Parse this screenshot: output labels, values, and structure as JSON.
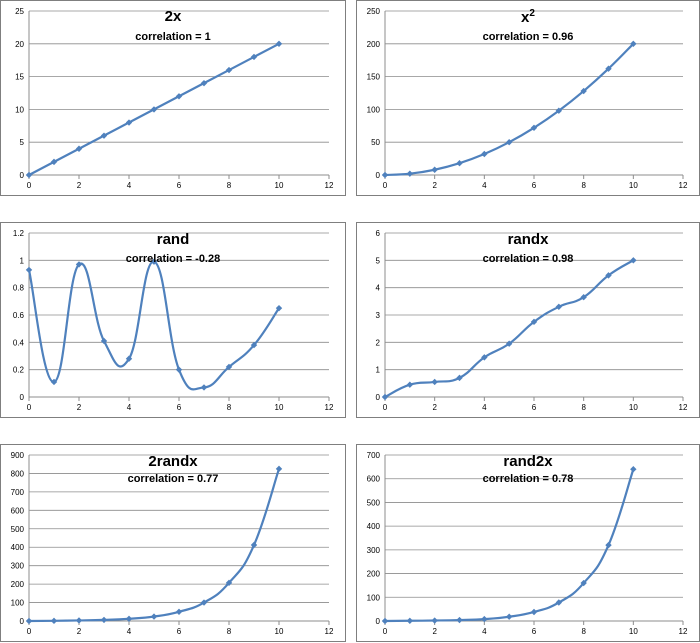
{
  "chart_data": [
    {
      "type": "line",
      "title": "2x",
      "subtitle": "correlation = 1",
      "x": [
        0,
        1,
        2,
        3,
        4,
        5,
        6,
        7,
        8,
        9,
        10
      ],
      "series": [
        {
          "values": [
            0,
            2,
            4,
            6,
            8,
            10,
            12,
            14,
            16,
            18,
            20
          ]
        }
      ],
      "xlim": [
        0,
        12
      ],
      "ylim": [
        0,
        25
      ],
      "xticks": [
        0,
        2,
        4,
        6,
        8,
        10,
        12
      ],
      "yticks": [
        0,
        5,
        10,
        15,
        20,
        25
      ],
      "smooth": false,
      "grid": true,
      "legend": "none",
      "color": "#4f81bd"
    },
    {
      "type": "line",
      "title": "x",
      "title_sup": "2",
      "subtitle": "correlation = 0.96",
      "x": [
        0,
        1,
        2,
        3,
        4,
        5,
        6,
        7,
        8,
        9,
        10
      ],
      "series": [
        {
          "values": [
            0,
            2,
            8,
            18,
            32,
            50,
            72,
            98,
            128,
            162,
            200
          ]
        }
      ],
      "xlim": [
        0,
        12
      ],
      "ylim": [
        0,
        250
      ],
      "xticks": [
        0,
        2,
        4,
        6,
        8,
        10,
        12
      ],
      "yticks": [
        0,
        50,
        100,
        150,
        200,
        250
      ],
      "smooth": true,
      "grid": true,
      "legend": "none",
      "color": "#4f81bd"
    },
    {
      "type": "line",
      "title": "rand",
      "subtitle": "correlation = -0.28",
      "x": [
        0,
        1,
        2,
        3,
        4,
        5,
        6,
        7,
        8,
        9,
        10
      ],
      "series": [
        {
          "values": [
            0.93,
            0.11,
            0.97,
            0.41,
            0.28,
            0.99,
            0.2,
            0.07,
            0.22,
            0.38,
            0.65
          ]
        }
      ],
      "xlim": [
        0,
        12
      ],
      "ylim": [
        0,
        1.2
      ],
      "xticks": [
        0,
        2,
        4,
        6,
        8,
        10,
        12
      ],
      "yticks": [
        0,
        0.2,
        0.4,
        0.6,
        0.8,
        1,
        1.2
      ],
      "smooth": true,
      "grid": true,
      "legend": "none",
      "color": "#4f81bd"
    },
    {
      "type": "line",
      "title": "randx",
      "subtitle": "correlation = 0.98",
      "x": [
        0,
        1,
        2,
        3,
        4,
        5,
        6,
        7,
        8,
        9,
        10
      ],
      "series": [
        {
          "values": [
            0,
            0.45,
            0.55,
            0.7,
            1.45,
            1.95,
            2.75,
            3.3,
            3.65,
            4.45,
            5.0
          ]
        }
      ],
      "xlim": [
        0,
        12
      ],
      "ylim": [
        0,
        6
      ],
      "xticks": [
        0,
        2,
        4,
        6,
        8,
        10,
        12
      ],
      "yticks": [
        0,
        1,
        2,
        3,
        4,
        5,
        6
      ],
      "smooth": true,
      "grid": true,
      "legend": "none",
      "color": "#4f81bd"
    },
    {
      "type": "line",
      "title": "2randx",
      "subtitle": "correlation = 0.77",
      "x": [
        0,
        1,
        2,
        3,
        4,
        5,
        6,
        7,
        8,
        9,
        10
      ],
      "series": [
        {
          "values": [
            0,
            1,
            3,
            6,
            12,
            24,
            50,
            100,
            207,
            412,
            825
          ]
        }
      ],
      "xlim": [
        0,
        12
      ],
      "ylim": [
        0,
        900
      ],
      "xticks": [
        0,
        2,
        4,
        6,
        8,
        10,
        12
      ],
      "yticks": [
        0,
        100,
        200,
        300,
        400,
        500,
        600,
        700,
        800,
        900
      ],
      "smooth": true,
      "grid": true,
      "legend": "none",
      "color": "#4f81bd"
    },
    {
      "type": "line",
      "title": "rand2x",
      "subtitle": "correlation = 0.78",
      "x": [
        0,
        1,
        2,
        3,
        4,
        5,
        6,
        7,
        8,
        9,
        10
      ],
      "series": [
        {
          "values": [
            0,
            1,
            2,
            4,
            8,
            18,
            38,
            78,
            160,
            320,
            640
          ]
        }
      ],
      "xlim": [
        0,
        12
      ],
      "ylim": [
        0,
        700
      ],
      "xticks": [
        0,
        2,
        4,
        6,
        8,
        10,
        12
      ],
      "yticks": [
        0,
        100,
        200,
        300,
        400,
        500,
        600,
        700
      ],
      "smooth": true,
      "grid": true,
      "legend": "none",
      "color": "#4f81bd"
    }
  ]
}
